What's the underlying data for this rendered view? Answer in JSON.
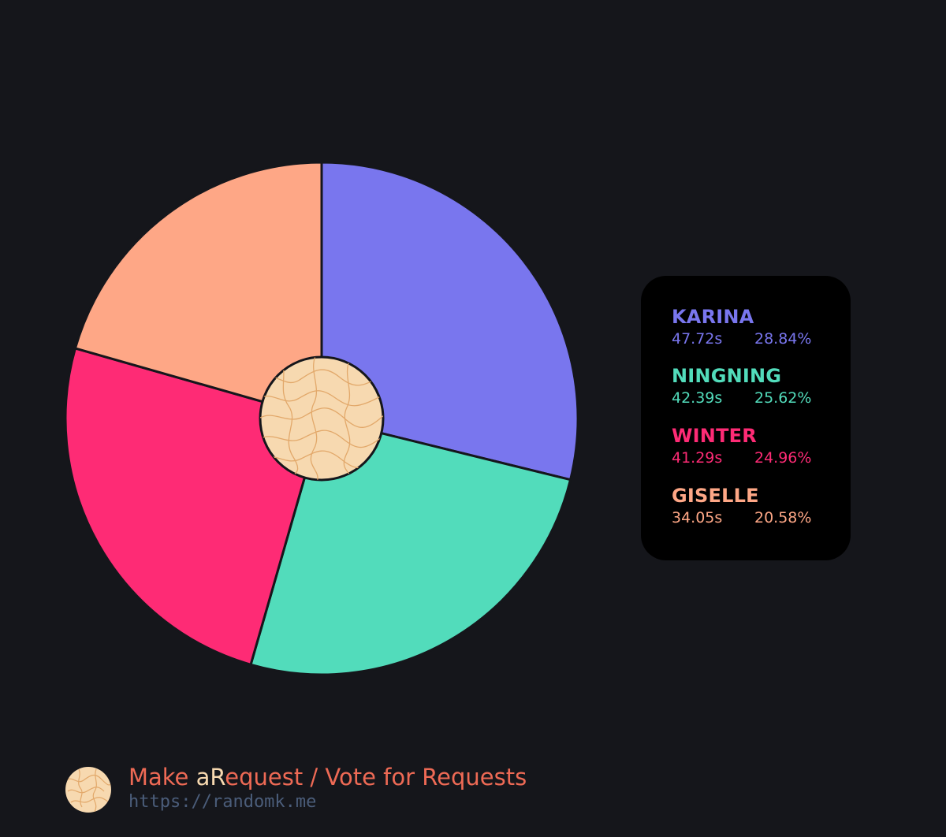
{
  "chart_data": {
    "type": "pie",
    "style": "donut-with-textured-center",
    "categories": [
      "KARINA",
      "NINGNING",
      "WINTER",
      "GISELLE"
    ],
    "values": [
      47.72,
      42.39,
      41.29,
      34.05
    ],
    "percentages": [
      28.84,
      25.62,
      24.96,
      20.58
    ],
    "time_labels": [
      "47.72s",
      "42.39s",
      "41.29s",
      "34.05s"
    ],
    "percent_labels": [
      "28.84%",
      "25.62%",
      "24.96%",
      "20.58%"
    ],
    "colors": [
      "#7976ee",
      "#52dcbb",
      "#fe2b75",
      "#fea786"
    ],
    "start_angle_deg": 0,
    "direction": "clockwise",
    "legend_position": "right",
    "center_fill": "#f7d9b0",
    "center_texture": "#e2a86a",
    "slice_outline": "#15161b"
  },
  "footer": {
    "title_part1": "Make ",
    "title_a": "a",
    "title_R": "R",
    "title_part2": "equest / Vote for Requests",
    "url": "https://randomk.me"
  }
}
